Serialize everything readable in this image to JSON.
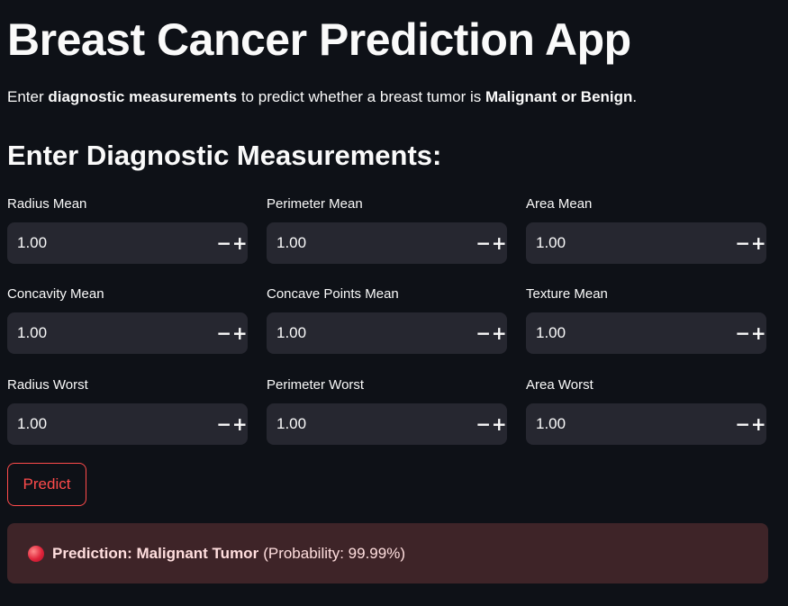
{
  "header": {
    "title": "Breast Cancer Prediction App",
    "intro": {
      "before": "Enter ",
      "bold1": "diagnostic measurements",
      "middle": " to predict whether a breast tumor is ",
      "bold2": "Malignant or Benign",
      "after": "."
    },
    "subheader": "Enter Diagnostic Measurements:"
  },
  "fields": [
    {
      "label": "Radius Mean",
      "value": "1.00"
    },
    {
      "label": "Perimeter Mean",
      "value": "1.00"
    },
    {
      "label": "Area Mean",
      "value": "1.00"
    },
    {
      "label": "Concavity Mean",
      "value": "1.00"
    },
    {
      "label": "Concave Points Mean",
      "value": "1.00"
    },
    {
      "label": "Texture Mean",
      "value": "1.00"
    },
    {
      "label": "Radius Worst",
      "value": "1.00"
    },
    {
      "label": "Perimeter Worst",
      "value": "1.00"
    },
    {
      "label": "Area Worst",
      "value": "1.00"
    }
  ],
  "stepper": {
    "minus": "−",
    "plus": "+"
  },
  "predict_label": "Predict",
  "result": {
    "icon": "red-circle-icon",
    "bold": "Prediction: Malignant Tumor",
    "detail": "(Probability: 99.99%)"
  },
  "colors": {
    "background": "#0e1117",
    "input_bg": "#262730",
    "accent": "#ff4b4b",
    "error_bg": "#3e2428"
  }
}
